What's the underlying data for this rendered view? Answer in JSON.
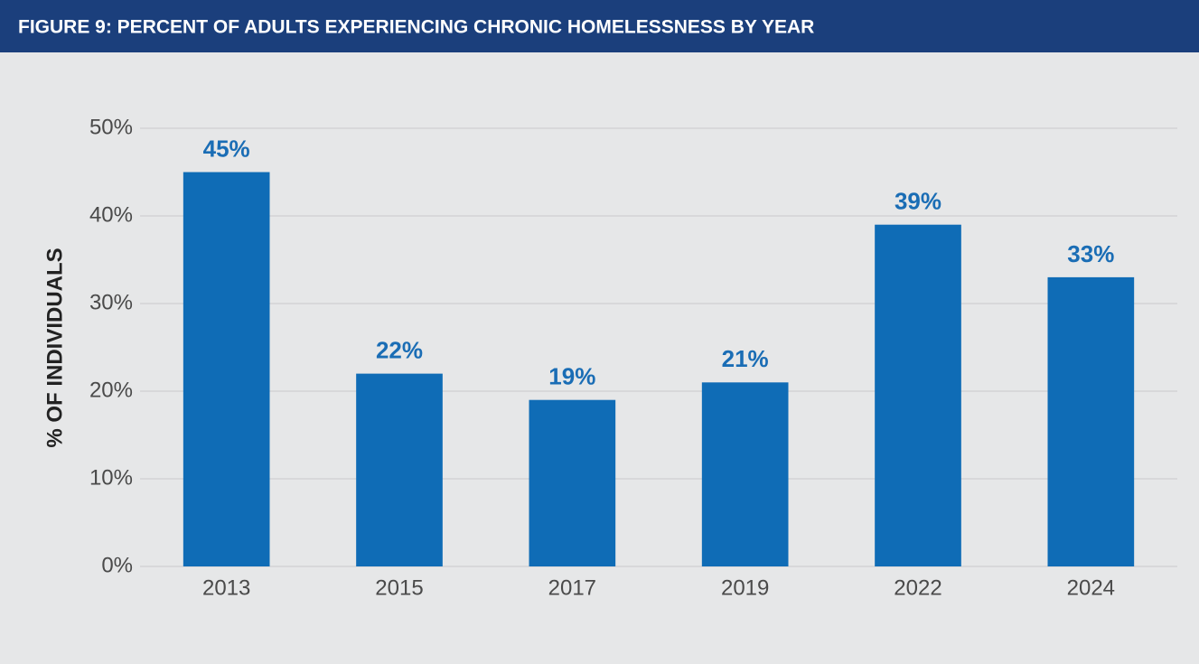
{
  "chart_data": {
    "type": "bar",
    "title": "FIGURE 9: PERCENT OF ADULTS EXPERIENCING CHRONIC HOMELESSNESS BY YEAR",
    "y_label": "% OF INDIVIDUALS",
    "categories": [
      "2013",
      "2015",
      "2017",
      "2019",
      "2022",
      "2024"
    ],
    "values": [
      45,
      22,
      19,
      21,
      39,
      33
    ],
    "value_labels": [
      "45%",
      "22%",
      "19%",
      "21%",
      "39%",
      "33%"
    ],
    "color": "#0f6cb6",
    "ylim": [
      0,
      50
    ],
    "yticks": [
      {
        "value": 0,
        "label": "0%"
      },
      {
        "value": 10,
        "label": "10%"
      },
      {
        "value": 20,
        "label": "20%"
      },
      {
        "value": 30,
        "label": "30%"
      },
      {
        "value": 40,
        "label": "40%"
      },
      {
        "value": 50,
        "label": "50%"
      }
    ],
    "grid": true
  }
}
